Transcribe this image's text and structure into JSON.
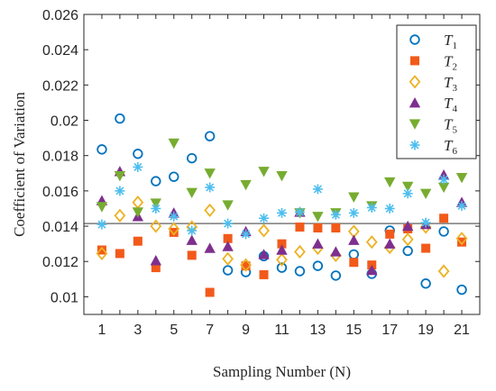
{
  "chart_data": {
    "type": "scatter",
    "xlabel": "Sampling Number (N)",
    "ylabel": "Coefficient of Variation",
    "xlim": [
      0,
      22
    ],
    "ylim": [
      0.009,
      0.026
    ],
    "x": [
      1,
      2,
      3,
      4,
      5,
      6,
      7,
      8,
      9,
      10,
      11,
      12,
      13,
      14,
      15,
      16,
      17,
      18,
      19,
      20,
      21
    ],
    "x_ticks": [
      "1",
      "3",
      "5",
      "7",
      "9",
      "11",
      "13",
      "15",
      "17",
      "19",
      "21"
    ],
    "y_ticks": [
      "0.01",
      "0.012",
      "0.014",
      "0.016",
      "0.018",
      "0.02",
      "0.022",
      "0.024",
      "0.026"
    ],
    "reference_line": 0.01415,
    "grid": false,
    "legend_position": "top-right",
    "series": [
      {
        "name": "T",
        "sub": "1",
        "marker": "circle",
        "color": "#0072BD",
        "values": [
          0.01835,
          0.0201,
          0.0181,
          0.01655,
          0.0168,
          0.01785,
          0.0191,
          0.0115,
          0.0114,
          0.0123,
          0.01165,
          0.01145,
          0.01175,
          0.0112,
          0.0124,
          0.0113,
          0.01375,
          0.0126,
          0.01075,
          0.0137,
          0.0104
        ]
      },
      {
        "name": "T",
        "sub": "2",
        "marker": "square",
        "color": "#F25A1A",
        "values": [
          0.01265,
          0.01245,
          0.01315,
          0.01165,
          0.01365,
          0.01235,
          0.01025,
          0.0133,
          0.01175,
          0.01125,
          0.013,
          0.01395,
          0.0139,
          0.0139,
          0.01195,
          0.0118,
          0.01355,
          0.01385,
          0.01275,
          0.01445,
          0.0131
        ]
      },
      {
        "name": "T",
        "sub": "3",
        "marker": "diamond",
        "color": "#EDB120",
        "values": [
          0.01245,
          0.0146,
          0.01535,
          0.014,
          0.01385,
          0.01395,
          0.0149,
          0.01215,
          0.0118,
          0.01375,
          0.0121,
          0.01255,
          0.01275,
          0.01235,
          0.0137,
          0.0131,
          0.0128,
          0.01325,
          0.01395,
          0.01145,
          0.0133
        ]
      },
      {
        "name": "T",
        "sub": "4",
        "marker": "triangle-up",
        "color": "#7E2F8E",
        "values": [
          0.01545,
          0.0171,
          0.01455,
          0.01205,
          0.01475,
          0.0132,
          0.01275,
          0.01285,
          0.0137,
          0.0124,
          0.01265,
          0.0148,
          0.013,
          0.01255,
          0.0132,
          0.0115,
          0.013,
          0.014,
          0.0141,
          0.0169,
          0.01535
        ]
      },
      {
        "name": "T",
        "sub": "5",
        "marker": "triangle-down",
        "color": "#77AC30",
        "values": [
          0.0151,
          0.01685,
          0.0148,
          0.0153,
          0.0187,
          0.0159,
          0.017,
          0.0152,
          0.01635,
          0.0171,
          0.01685,
          0.01475,
          0.01455,
          0.01475,
          0.01565,
          0.01515,
          0.0165,
          0.01625,
          0.01585,
          0.0162,
          0.01675
        ]
      },
      {
        "name": "T",
        "sub": "6",
        "marker": "asterisk",
        "color": "#4DBEEE",
        "values": [
          0.0141,
          0.016,
          0.01735,
          0.015,
          0.01455,
          0.01375,
          0.0162,
          0.01415,
          0.01355,
          0.01445,
          0.01475,
          0.0148,
          0.0161,
          0.01465,
          0.01475,
          0.01505,
          0.015,
          0.01585,
          0.0142,
          0.01665,
          0.01515
        ]
      }
    ]
  }
}
